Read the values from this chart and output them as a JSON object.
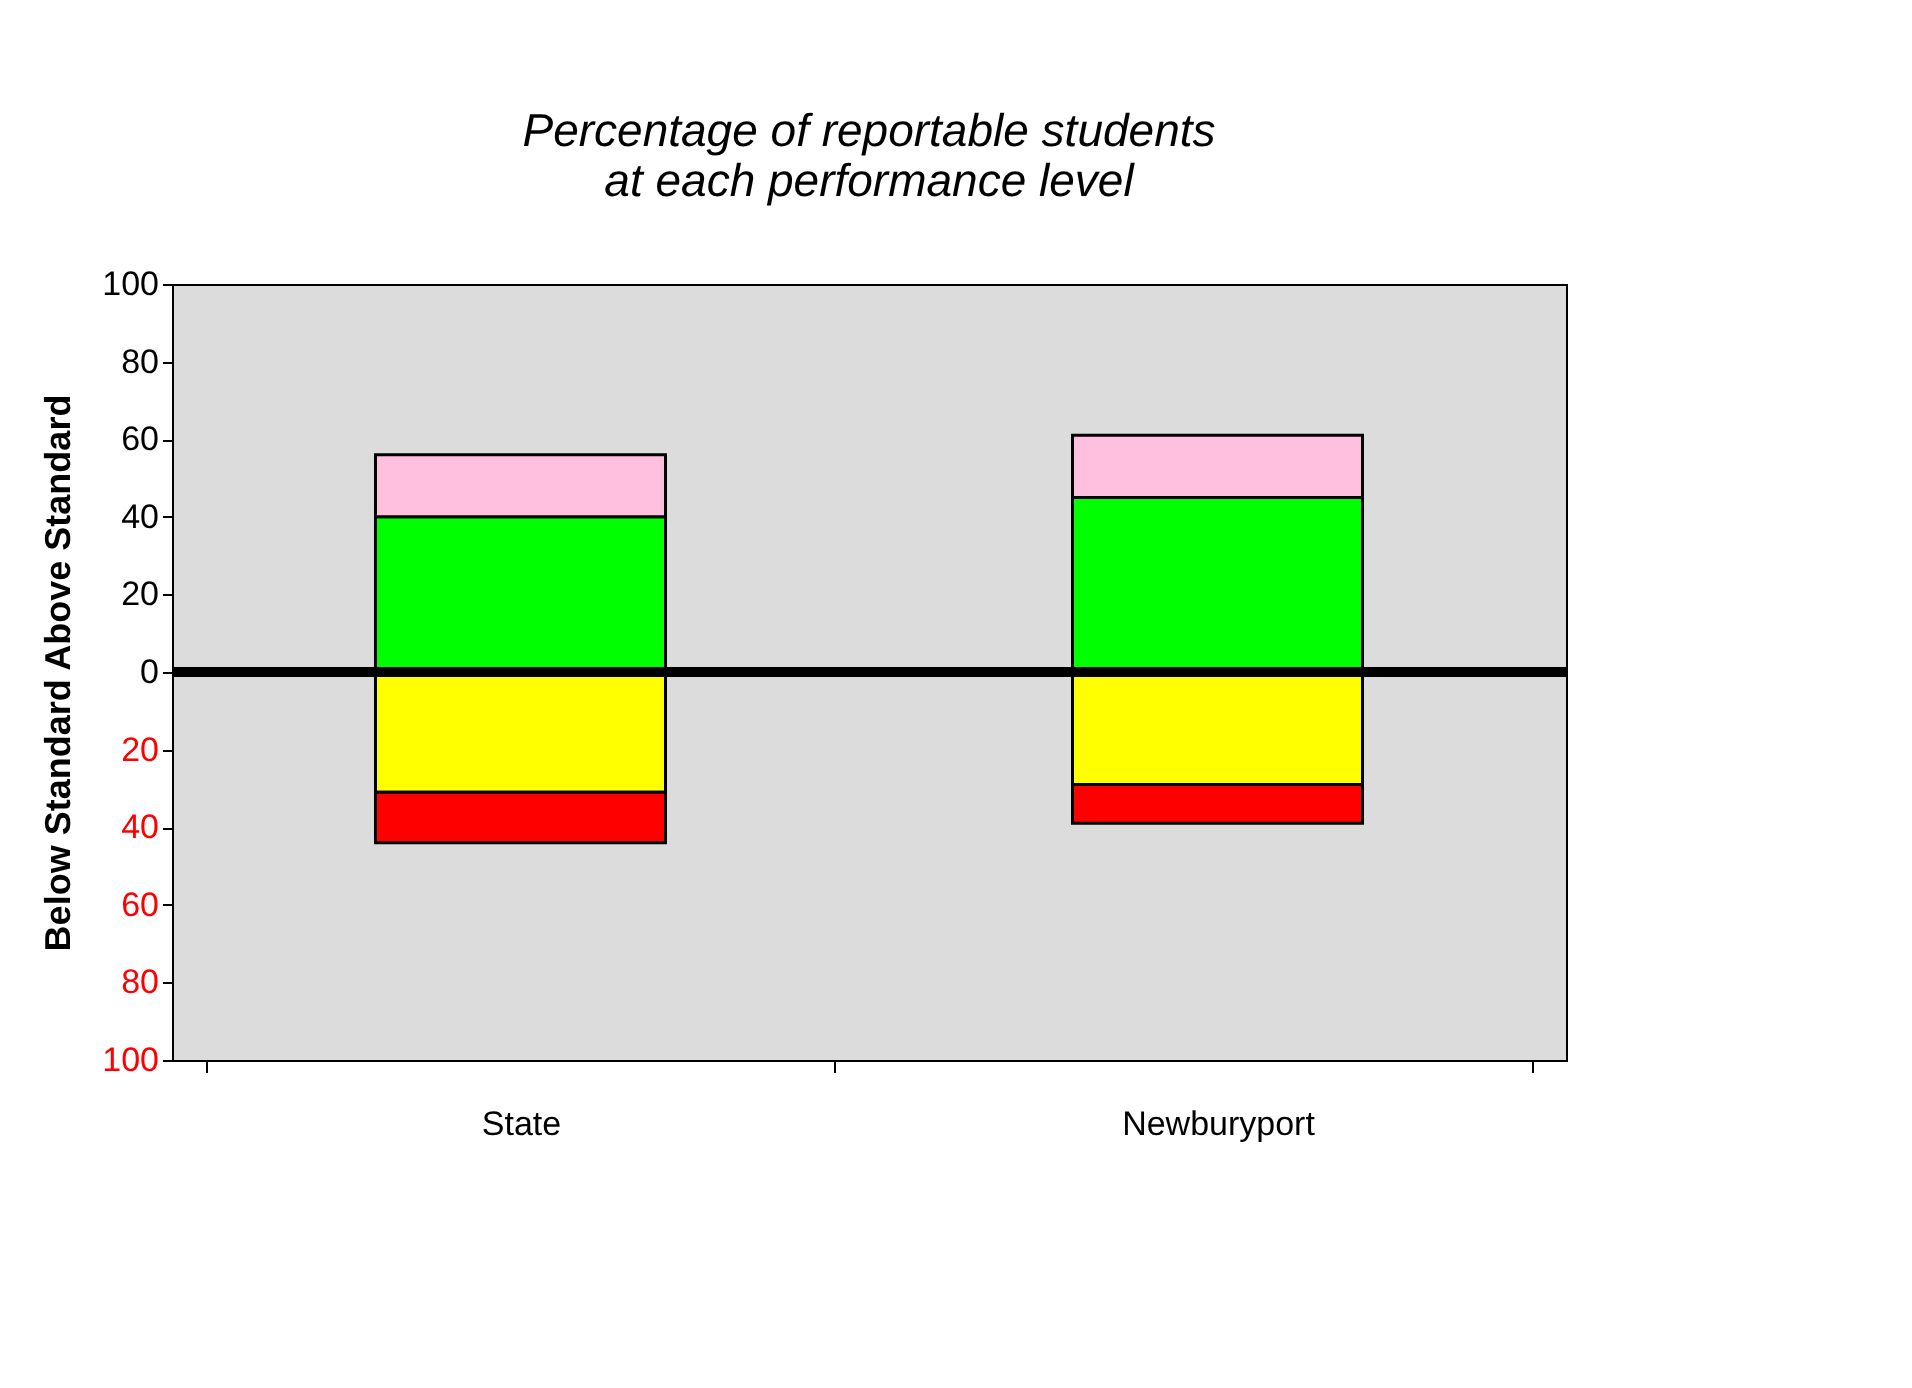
{
  "chart_data": {
    "type": "bar",
    "stacked": true,
    "title": "Percentage of reportable students\nat each performance level",
    "ylabel": "Below Standard  Above Standard",
    "categories": [
      "State",
      "Newburyport"
    ],
    "series": [
      {
        "color": "#00ff00",
        "values": [
          40,
          45
        ]
      },
      {
        "color": "#ffc0e0",
        "values": [
          16,
          16
        ]
      },
      {
        "color": "#ffff00",
        "values": [
          -31,
          -29
        ]
      },
      {
        "color": "#ff0000",
        "values": [
          -13,
          -10
        ]
      }
    ],
    "ylim": [
      -100,
      100
    ],
    "yticks": [
      {
        "value": -100,
        "label": "100"
      },
      {
        "value": -80,
        "label": "80"
      },
      {
        "value": -60,
        "label": "60"
      },
      {
        "value": -40,
        "label": "40"
      },
      {
        "value": -20,
        "label": "20"
      },
      0,
      20,
      40,
      60,
      80,
      100
    ],
    "ref_lines": [
      {
        "axis": "y",
        "value": 0,
        "color": "#000000"
      }
    ],
    "grid": false,
    "legend": false
  }
}
